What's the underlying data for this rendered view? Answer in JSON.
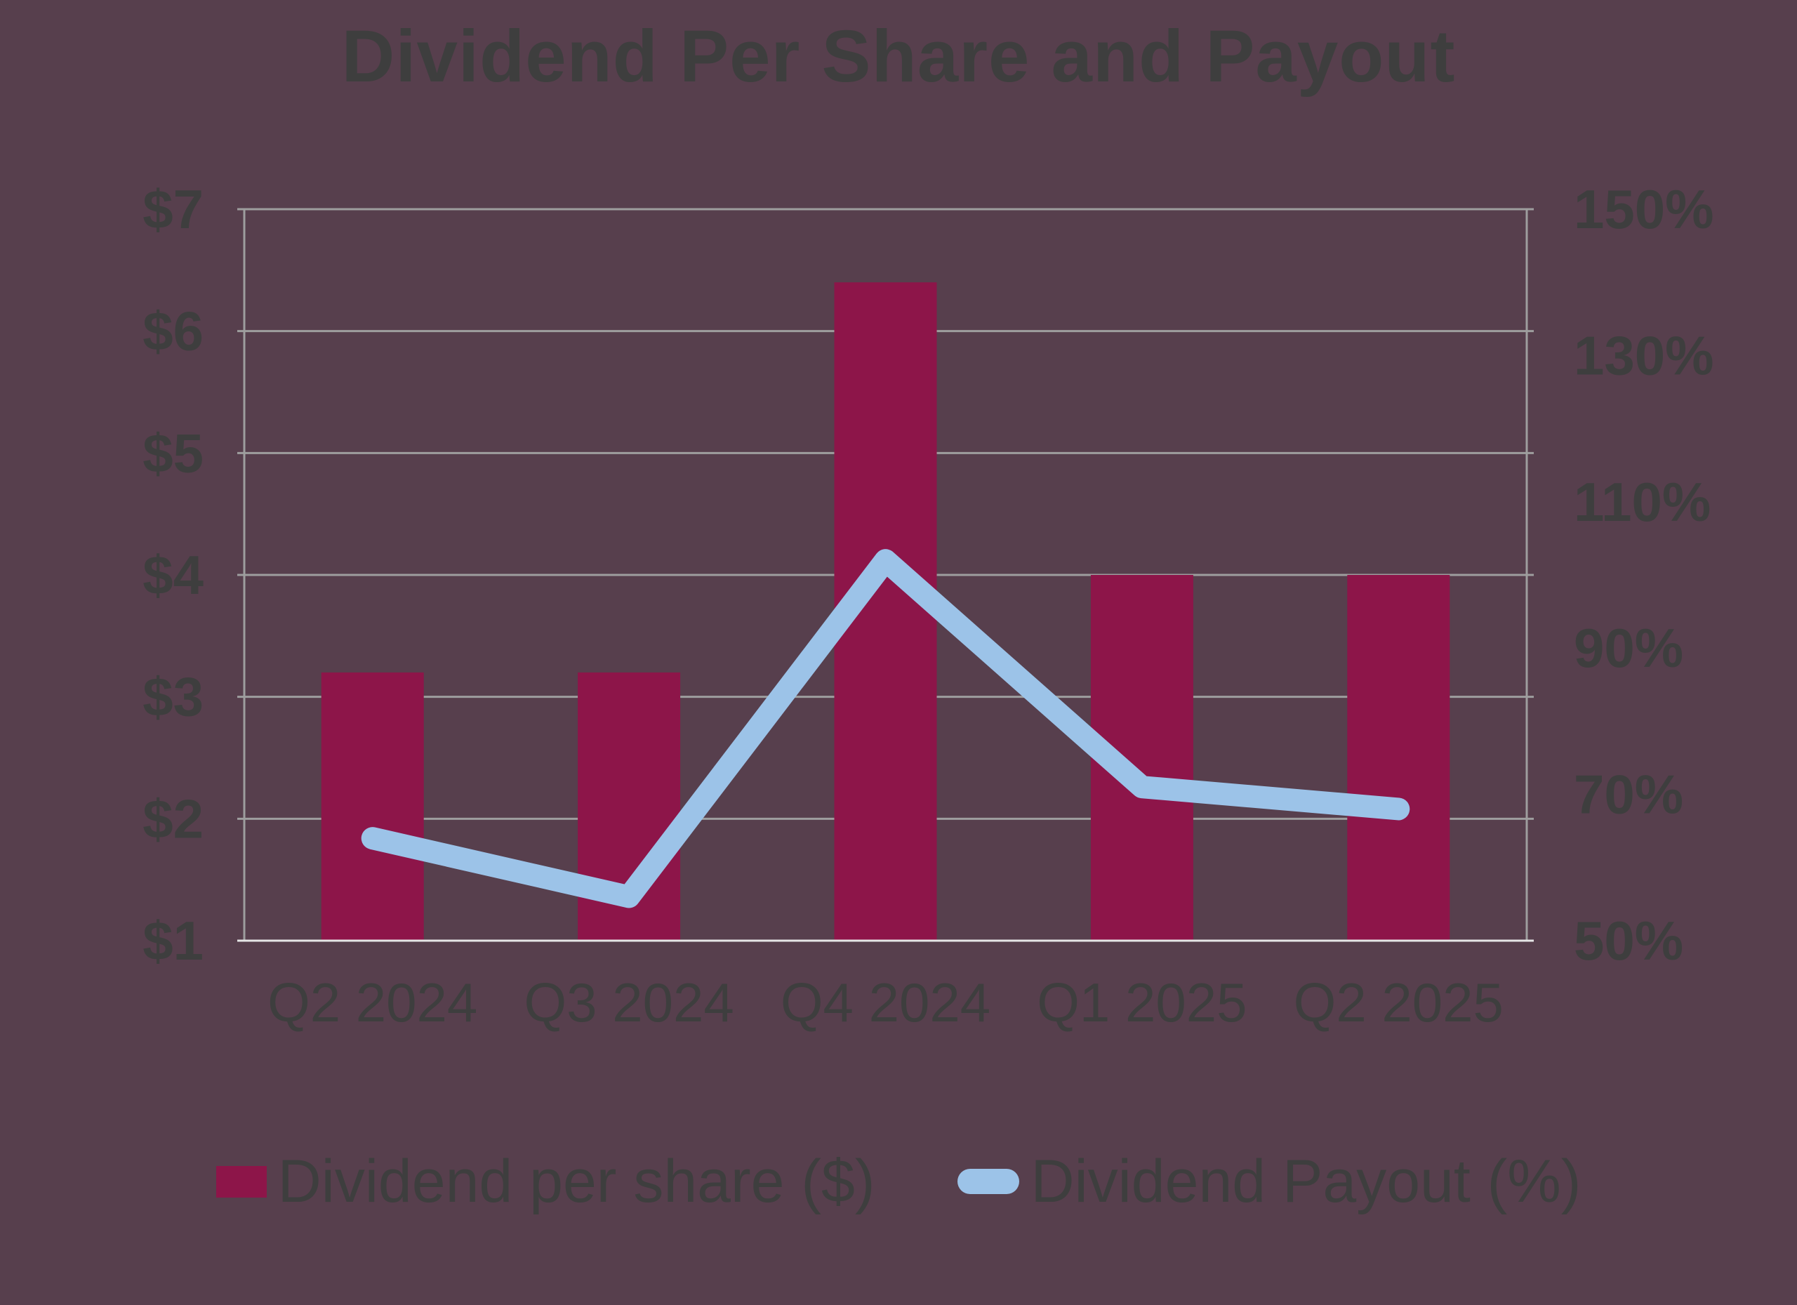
{
  "chart_data": {
    "type": "combo",
    "title": "Dividend Per Share and Payout",
    "categories": [
      "Q2 2024",
      "Q3 2024",
      "Q4 2024",
      "Q1 2025",
      "Q2 2025"
    ],
    "series": [
      {
        "name": "Dividend per share ($)",
        "type": "bar",
        "axis": "left",
        "color": "#8D1549",
        "values": [
          3.2,
          3.2,
          6.4,
          4.0,
          4.0
        ]
      },
      {
        "name": "Dividend Payout (%)",
        "type": "line",
        "axis": "right",
        "color": "#9CC3E8",
        "values": [
          64,
          56,
          102,
          71,
          68
        ]
      }
    ],
    "axes": {
      "left": {
        "min": 1,
        "max": 7,
        "step": 1,
        "tick_labels": [
          "$1",
          "$2",
          "$3",
          "$4",
          "$5",
          "$6",
          "$7"
        ]
      },
      "right": {
        "min": 50,
        "max": 150,
        "step": 20,
        "tick_labels": [
          "50%",
          "70%",
          "90%",
          "110%",
          "130%",
          "150%"
        ]
      }
    },
    "grid": true,
    "legend_position": "bottom"
  },
  "legend": {
    "items": [
      {
        "label": "Dividend per share ($)",
        "swatch": "square",
        "color": "#8D1549"
      },
      {
        "label": "Dividend Payout (%)",
        "swatch": "line",
        "color": "#9CC3E8"
      }
    ]
  },
  "style": {
    "background": "#573F4D",
    "text_color": "#3E3E3E",
    "grid_color": "#9E9E9E",
    "baseline_color": "#E6E6E6"
  }
}
